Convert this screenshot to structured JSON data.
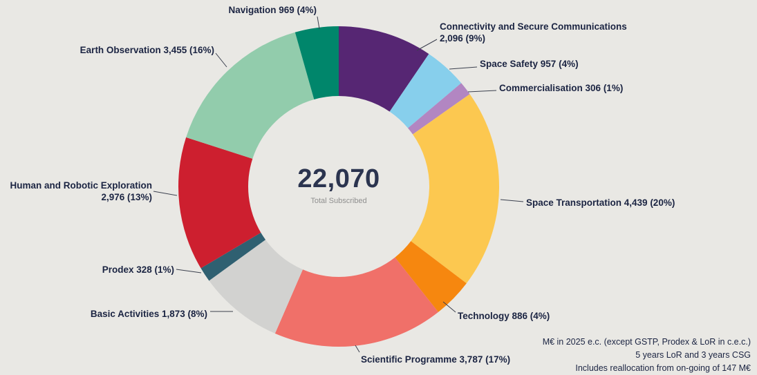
{
  "chart_data": {
    "type": "pie",
    "variant": "donut",
    "title": "",
    "legend": "none",
    "start_angle_deg": 0,
    "direction": "clockwise",
    "center_total_text": "22,070",
    "center_total_value": 22070,
    "center_sublabel": "Total Subscribed",
    "unit": "M€",
    "segments": [
      {
        "name": "Connectivity and Secure Communications",
        "value": 2096,
        "pct": 9,
        "color": "#562673",
        "label_text": "Connectivity and Secure Communications\n2,096 (9%)"
      },
      {
        "name": "Space Safety",
        "value": 957,
        "pct": 4,
        "color": "#87cfec",
        "label_text": "Space Safety 957 (4%)"
      },
      {
        "name": "Commercialisation",
        "value": 306,
        "pct": 1,
        "color": "#b286c2",
        "label_text": "Commercialisation 306 (1%)"
      },
      {
        "name": "Space Transportation",
        "value": 4439,
        "pct": 20,
        "color": "#fcc850",
        "label_text": "Space Transportation 4,439 (20%)"
      },
      {
        "name": "Technology",
        "value": 886,
        "pct": 4,
        "color": "#f6870f",
        "label_text": "Technology 886 (4%)"
      },
      {
        "name": "Scientific Programme",
        "value": 3787,
        "pct": 17,
        "color": "#f07069",
        "label_text": "Scientific Programme 3,787 (17%)"
      },
      {
        "name": "Basic Activities",
        "value": 1873,
        "pct": 8,
        "color": "#d2d2d0",
        "label_text": "Basic Activities 1,873 (8%)"
      },
      {
        "name": "Prodex",
        "value": 328,
        "pct": 1,
        "color": "#2f6071",
        "label_text": "Prodex 328 (1%)"
      },
      {
        "name": "Human and Robotic Exploration",
        "value": 2976,
        "pct": 13,
        "color": "#cd1f2f",
        "label_text": "Human and Robotic Exploration\n2,976 (13%)"
      },
      {
        "name": "Earth Observation",
        "value": 3455,
        "pct": 16,
        "color": "#92ccac",
        "label_text": "Earth Observation 3,455 (16%)"
      },
      {
        "name": "Navigation",
        "value": 969,
        "pct": 4,
        "color": "#00866b",
        "label_text": "Navigation 969 (4%)"
      }
    ]
  },
  "footnote": {
    "lines": [
      "M€ in 2025 e.c. (except GSTP, Prodex & LoR in c.e.c.)",
      "5 years LoR and 3 years CSG",
      "Includes reallocation from on-going of 147 M€"
    ]
  }
}
